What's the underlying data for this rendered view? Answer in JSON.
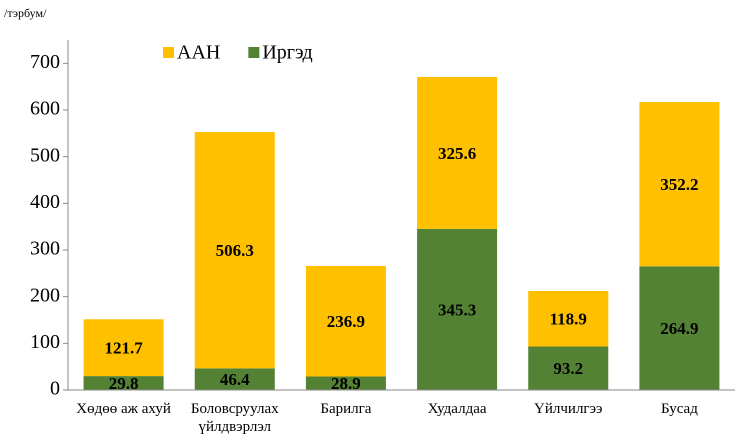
{
  "chart_data": {
    "type": "stacked_bar",
    "y_label": "/тэрбум/",
    "categories": [
      "Хөдөө аж ахуй",
      "Боловсруулах үйлдвэрлэл",
      "Барилга",
      "Худалдаа",
      "Үйлчилгээ",
      "Бусад"
    ],
    "series": [
      {
        "name": "Иргэд",
        "color": "#548235",
        "values": [
          29.8,
          46.4,
          28.9,
          345.3,
          93.2,
          264.9
        ]
      },
      {
        "name": "ААН",
        "color": "#FFC000",
        "values": [
          121.7,
          506.3,
          236.9,
          325.6,
          118.9,
          352.2
        ]
      }
    ],
    "legend_order": [
      1,
      0
    ],
    "ylim": [
      0,
      750
    ],
    "yticks": [
      0,
      100,
      200,
      300,
      400,
      500,
      600,
      700
    ],
    "grid": false
  }
}
